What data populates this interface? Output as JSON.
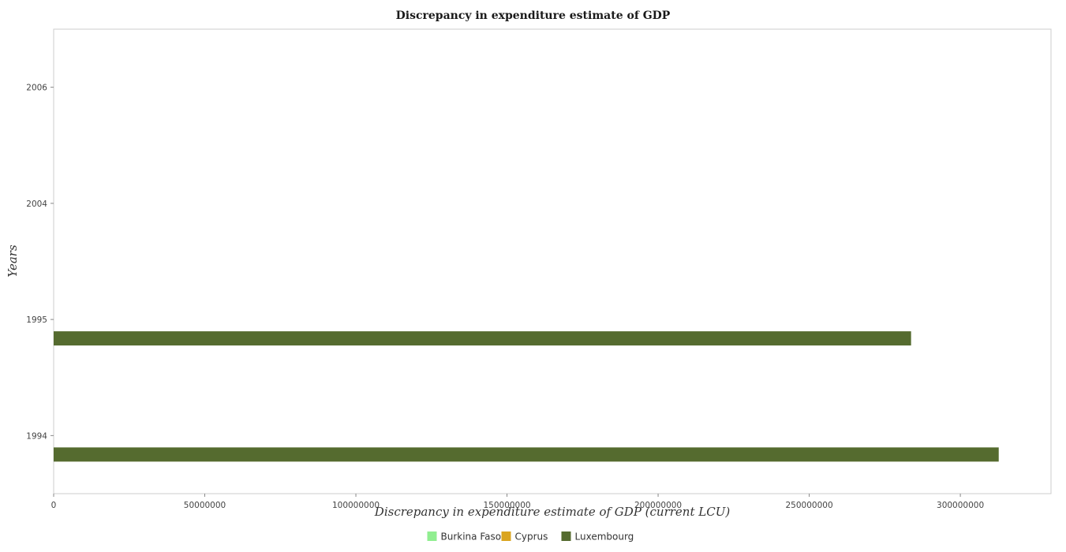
{
  "chart_data": {
    "type": "bar",
    "orientation": "horizontal",
    "title": "Discrepancy in expenditure estimate of GDP",
    "xlabel": "Discrepancy in expenditure estimate of GDP (current LCU)",
    "ylabel": "Years",
    "categories": [
      "1994",
      "1995",
      "2004",
      "2006"
    ],
    "series": [
      {
        "name": "Burkina Faso",
        "color": "#90ee90",
        "values": [
          0,
          0,
          0,
          0
        ]
      },
      {
        "name": "Cyprus",
        "color": "#daa520",
        "values": [
          0,
          0,
          0,
          0
        ]
      },
      {
        "name": "Luxembourg",
        "color": "#556b2f",
        "values": [
          312700000,
          283700000,
          0,
          0
        ]
      }
    ],
    "xlim": [
      0,
      330000000
    ],
    "xticks": [
      0,
      50000000,
      100000000,
      150000000,
      200000000,
      250000000,
      300000000
    ],
    "xtick_labels": [
      "0",
      "50000000",
      "100000000",
      "150000000",
      "200000000",
      "250000000",
      "300000000"
    ],
    "grid": false,
    "legend_position": "bottom-center"
  }
}
